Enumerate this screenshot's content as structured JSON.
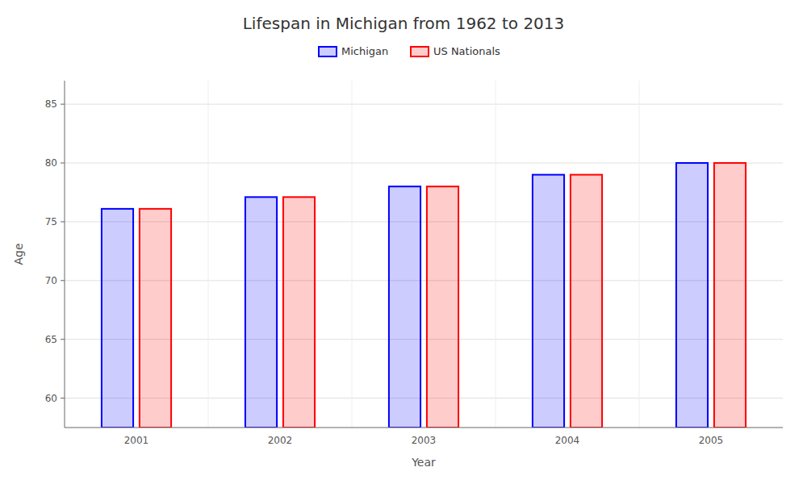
{
  "chart_data": {
    "type": "bar",
    "title": "Lifespan in Michigan from 1962 to 2013",
    "x_label": "Year",
    "y_label": "Age",
    "categories": [
      "2001",
      "2002",
      "2003",
      "2004",
      "2005"
    ],
    "series": [
      {
        "name": "Michigan",
        "color": "#0000ff",
        "values": [
          76.1,
          77.1,
          78.0,
          79.0,
          80.0
        ]
      },
      {
        "name": "US Nationals",
        "color": "#ff0000",
        "values": [
          76.1,
          77.1,
          78.0,
          79.0,
          80.0
        ]
      }
    ],
    "ylim": [
      57.5,
      87
    ],
    "yticks": [
      60,
      65,
      70,
      75,
      80,
      85
    ],
    "grid": true,
    "legend": "top"
  }
}
